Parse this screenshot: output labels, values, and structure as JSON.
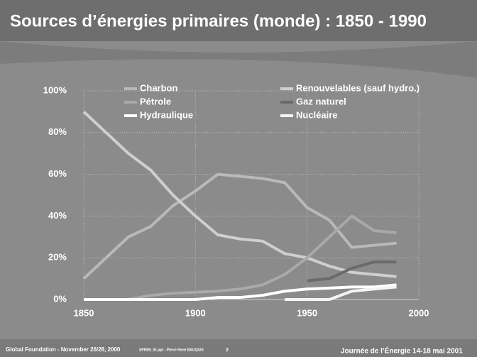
{
  "chart_data": {
    "type": "line",
    "title": "Sources d’énergies primaires (monde) : 1850 - 1990",
    "x": [
      1850,
      1860,
      1870,
      1880,
      1890,
      1900,
      1910,
      1920,
      1930,
      1940,
      1950,
      1960,
      1970,
      1980,
      1990
    ],
    "series": [
      {
        "name": "Charbon",
        "color": "#b9b9b9",
        "values": [
          10,
          20,
          30,
          35,
          45,
          52,
          60,
          59,
          58,
          56,
          44,
          38,
          25,
          26,
          27
        ]
      },
      {
        "name": "Renouvelables (sauf hydro.)",
        "color": "#cfcfcf",
        "values": [
          90,
          80,
          70,
          62,
          50,
          40,
          31,
          29,
          28,
          22,
          20,
          16,
          13,
          12,
          11
        ]
      },
      {
        "name": "Pétrole",
        "color": "#a9a9a9",
        "values": [
          null,
          null,
          0,
          2,
          3,
          3.5,
          4,
          5,
          7,
          12,
          20,
          30,
          40,
          33,
          32
        ]
      },
      {
        "name": "Gaz naturel",
        "color": "#6a6a6a",
        "values": [
          null,
          null,
          null,
          null,
          null,
          null,
          null,
          null,
          null,
          null,
          9,
          10,
          15,
          18,
          18
        ]
      },
      {
        "name": "Hydraulique",
        "color": "#ffffff",
        "values": [
          0,
          0,
          0,
          0,
          0,
          0,
          1,
          1,
          2,
          4,
          5,
          5.5,
          6,
          6,
          7
        ]
      },
      {
        "name": "Nucléaire",
        "color": "#f4f4f4",
        "values": [
          null,
          null,
          null,
          null,
          null,
          null,
          null,
          null,
          null,
          0,
          0,
          0,
          4,
          5,
          6
        ]
      }
    ],
    "xlim": [
      1850,
      2000
    ],
    "xticks": [
      1850,
      1900,
      1950,
      2000
    ],
    "ylim": [
      0,
      100
    ],
    "yticks": [
      {
        "value": 0,
        "label": "0%"
      },
      {
        "value": 20,
        "label": "20%"
      },
      {
        "value": 40,
        "label": "40%"
      },
      {
        "value": 60,
        "label": "60%"
      },
      {
        "value": 80,
        "label": "80%"
      },
      {
        "value": 100,
        "label": "100%"
      }
    ],
    "grid": true
  },
  "footer": {
    "left": "Global Foundation - November 26/28, 2000",
    "file": "SPRB9_01.ppt - Pierre René BAUQUIS",
    "page": "2",
    "right": "Journée de l’Énergie 14-18 mai 2001"
  }
}
